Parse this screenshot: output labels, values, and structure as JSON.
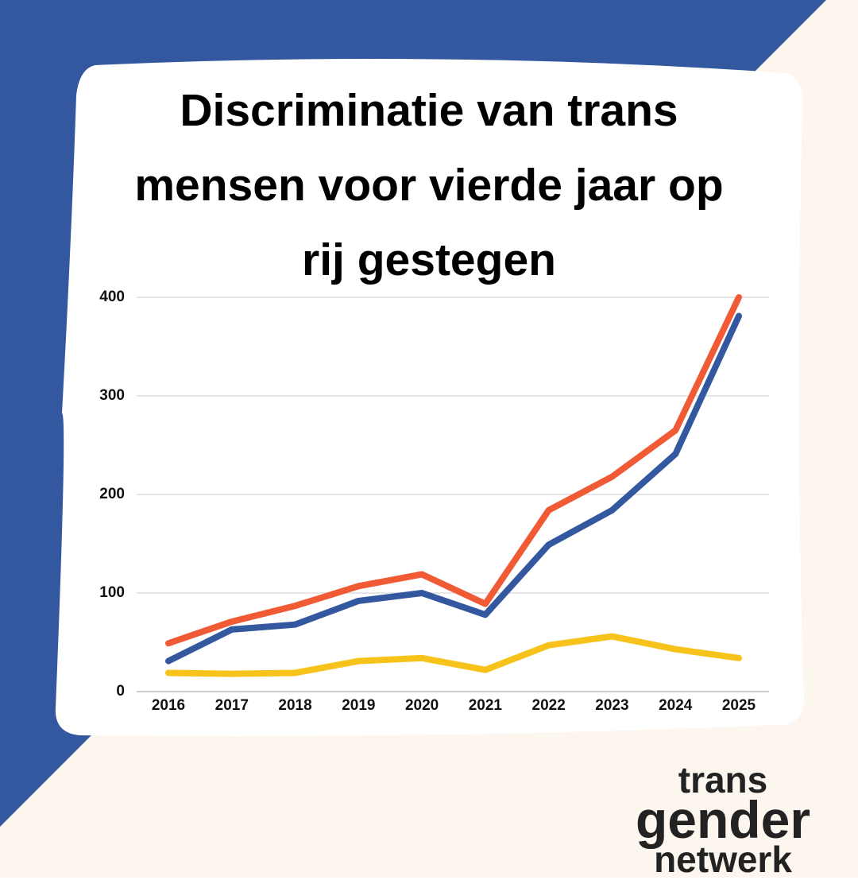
{
  "chart_data": {
    "type": "line",
    "title": "Discriminatie van trans mensen voor vierde jaar op rij gestegen",
    "categories": [
      "2016",
      "2017",
      "2018",
      "2019",
      "2020",
      "2021",
      "2022",
      "2023",
      "2024",
      "2025"
    ],
    "series": [
      {
        "color": "#f05a35",
        "values": [
          49,
          71,
          87,
          107,
          119,
          89,
          184,
          218,
          265,
          400
        ]
      },
      {
        "color": "#3358a0",
        "values": [
          31,
          63,
          68,
          92,
          100,
          78,
          149,
          184,
          241,
          381
        ]
      },
      {
        "color": "#f7c21a",
        "values": [
          19,
          18,
          19,
          31,
          34,
          22,
          47,
          56,
          43,
          34
        ]
      }
    ],
    "ylim": [
      0,
      400
    ],
    "yticks": [
      0,
      100,
      200,
      300,
      400
    ],
    "grid": true
  },
  "logo": [
    "trans",
    "gender",
    "netwerk"
  ]
}
